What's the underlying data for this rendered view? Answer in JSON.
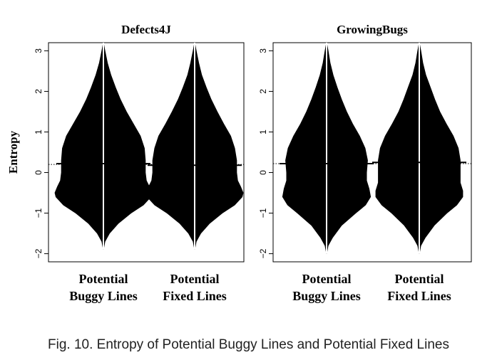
{
  "caption": "Fig. 10.  Entropy of Potential Buggy Lines and Potential Fixed Lines",
  "chart_data": {
    "type": "violin",
    "ylabel": "Entropy",
    "ylim": [
      -2.2,
      3.2
    ],
    "yticks": [
      -2,
      -1,
      0,
      1,
      2,
      3
    ],
    "ytick_labels": [
      "−2",
      "−1",
      "0",
      "1",
      "2",
      "3"
    ],
    "colors": {
      "violin": "#000000",
      "median_line": "#ffffff",
      "reference": "#000000"
    },
    "panels": [
      {
        "title": "Defects4J",
        "reference_line": 0.2,
        "series": [
          {
            "name": "Potential Buggy Lines",
            "label_lines": [
              "Potential",
              "Buggy Lines"
            ],
            "median": 0.22,
            "min": -1.9,
            "max": 3.2,
            "profile": [
              [
                -1.9,
                0.0
              ],
              [
                -1.7,
                0.03
              ],
              [
                -1.5,
                0.12
              ],
              [
                -1.25,
                0.3
              ],
              [
                -1.0,
                0.55
              ],
              [
                -0.8,
                0.8
              ],
              [
                -0.6,
                0.95
              ],
              [
                -0.5,
                0.97
              ],
              [
                -0.35,
                0.92
              ],
              [
                -0.2,
                0.86
              ],
              [
                0.0,
                0.84
              ],
              [
                0.3,
                0.84
              ],
              [
                0.6,
                0.82
              ],
              [
                0.9,
                0.74
              ],
              [
                1.2,
                0.6
              ],
              [
                1.5,
                0.46
              ],
              [
                1.8,
                0.34
              ],
              [
                2.1,
                0.24
              ],
              [
                2.4,
                0.15
              ],
              [
                2.7,
                0.08
              ],
              [
                3.0,
                0.03
              ],
              [
                3.2,
                0.0
              ]
            ]
          },
          {
            "name": "Potential Fixed Lines",
            "label_lines": [
              "Potential",
              "Fixed Lines"
            ],
            "median": 0.18,
            "min": -1.9,
            "max": 3.2,
            "profile": [
              [
                -1.9,
                0.0
              ],
              [
                -1.7,
                0.03
              ],
              [
                -1.5,
                0.12
              ],
              [
                -1.25,
                0.3
              ],
              [
                -1.0,
                0.55
              ],
              [
                -0.8,
                0.8
              ],
              [
                -0.6,
                0.95
              ],
              [
                -0.5,
                0.97
              ],
              [
                -0.35,
                0.92
              ],
              [
                -0.2,
                0.86
              ],
              [
                0.0,
                0.84
              ],
              [
                0.3,
                0.84
              ],
              [
                0.6,
                0.8
              ],
              [
                0.9,
                0.72
              ],
              [
                1.2,
                0.58
              ],
              [
                1.5,
                0.45
              ],
              [
                1.8,
                0.33
              ],
              [
                2.1,
                0.23
              ],
              [
                2.4,
                0.14
              ],
              [
                2.7,
                0.08
              ],
              [
                3.0,
                0.03
              ],
              [
                3.2,
                0.0
              ]
            ]
          }
        ]
      },
      {
        "title": "GrowingBugs",
        "reference_line": 0.22,
        "series": [
          {
            "name": "Potential Buggy Lines",
            "label_lines": [
              "Potential",
              "Buggy Lines"
            ],
            "median": 0.22,
            "min": -2.0,
            "max": 3.2,
            "profile": [
              [
                -2.0,
                0.0
              ],
              [
                -1.8,
                0.03
              ],
              [
                -1.6,
                0.12
              ],
              [
                -1.3,
                0.3
              ],
              [
                -1.0,
                0.58
              ],
              [
                -0.8,
                0.78
              ],
              [
                -0.6,
                0.88
              ],
              [
                -0.4,
                0.85
              ],
              [
                -0.2,
                0.8
              ],
              [
                0.0,
                0.8
              ],
              [
                0.3,
                0.82
              ],
              [
                0.6,
                0.77
              ],
              [
                0.9,
                0.66
              ],
              [
                1.2,
                0.52
              ],
              [
                1.5,
                0.4
              ],
              [
                1.8,
                0.3
              ],
              [
                2.1,
                0.21
              ],
              [
                2.4,
                0.13
              ],
              [
                2.7,
                0.07
              ],
              [
                3.0,
                0.03
              ],
              [
                3.2,
                0.0
              ]
            ]
          },
          {
            "name": "Potential Fixed Lines",
            "label_lines": [
              "Potential",
              "Fixed Lines"
            ],
            "median": 0.25,
            "min": -2.0,
            "max": 3.2,
            "profile": [
              [
                -2.0,
                0.0
              ],
              [
                -1.8,
                0.03
              ],
              [
                -1.6,
                0.12
              ],
              [
                -1.3,
                0.3
              ],
              [
                -1.0,
                0.55
              ],
              [
                -0.8,
                0.75
              ],
              [
                -0.6,
                0.87
              ],
              [
                -0.45,
                0.87
              ],
              [
                -0.25,
                0.82
              ],
              [
                0.0,
                0.82
              ],
              [
                0.3,
                0.82
              ],
              [
                0.6,
                0.78
              ],
              [
                0.9,
                0.68
              ],
              [
                1.2,
                0.54
              ],
              [
                1.5,
                0.41
              ],
              [
                1.8,
                0.31
              ],
              [
                2.1,
                0.22
              ],
              [
                2.4,
                0.13
              ],
              [
                2.7,
                0.07
              ],
              [
                3.0,
                0.03
              ],
              [
                3.2,
                0.0
              ]
            ]
          }
        ]
      }
    ]
  }
}
